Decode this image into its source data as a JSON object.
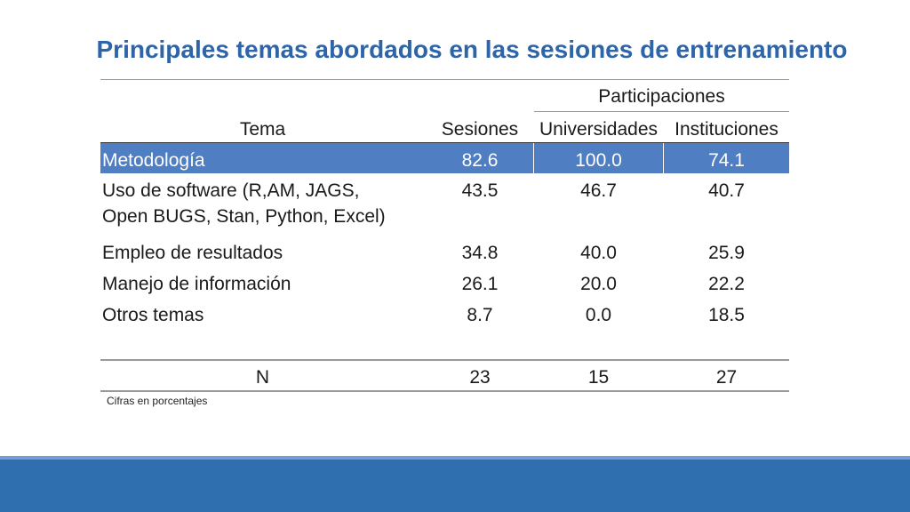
{
  "title": "Principales temas abordados en las sesiones de entrenamiento",
  "table": {
    "group_header": "Participaciones",
    "headers": {
      "tema": "Tema",
      "sesiones": "Sesiones",
      "universidades": "Universidades",
      "instituciones": "Instituciones"
    },
    "rows": [
      {
        "tema_line1": "Metodología",
        "tema_line2": "",
        "sesiones": "82.6",
        "universidades": "100.0",
        "instituciones": "74.1",
        "highlighted": true
      },
      {
        "tema_line1": "Uso de software (R,AM, JAGS,",
        "tema_line2": "Open BUGS, Stan, Python, Excel)",
        "sesiones": "43.5",
        "universidades": "46.7",
        "instituciones": "40.7",
        "highlighted": false
      },
      {
        "tema_line1": "Empleo de resultados",
        "tema_line2": "",
        "sesiones": "34.8",
        "universidades": "40.0",
        "instituciones": "25.9",
        "highlighted": false
      },
      {
        "tema_line1": "Manejo de información",
        "tema_line2": "",
        "sesiones": "26.1",
        "universidades": "20.0",
        "instituciones": "22.2",
        "highlighted": false
      },
      {
        "tema_line1": "Otros temas",
        "tema_line2": "",
        "sesiones": "8.7",
        "universidades": "0.0",
        "instituciones": "18.5",
        "highlighted": false
      }
    ],
    "totals": {
      "label": "N",
      "sesiones": "23",
      "universidades": "15",
      "instituciones": "27"
    }
  },
  "note": "Cifras en porcentajes",
  "colors": {
    "title": "#2e64a8",
    "highlight": "#4f7fc2",
    "footer": "#2f6fb0"
  }
}
